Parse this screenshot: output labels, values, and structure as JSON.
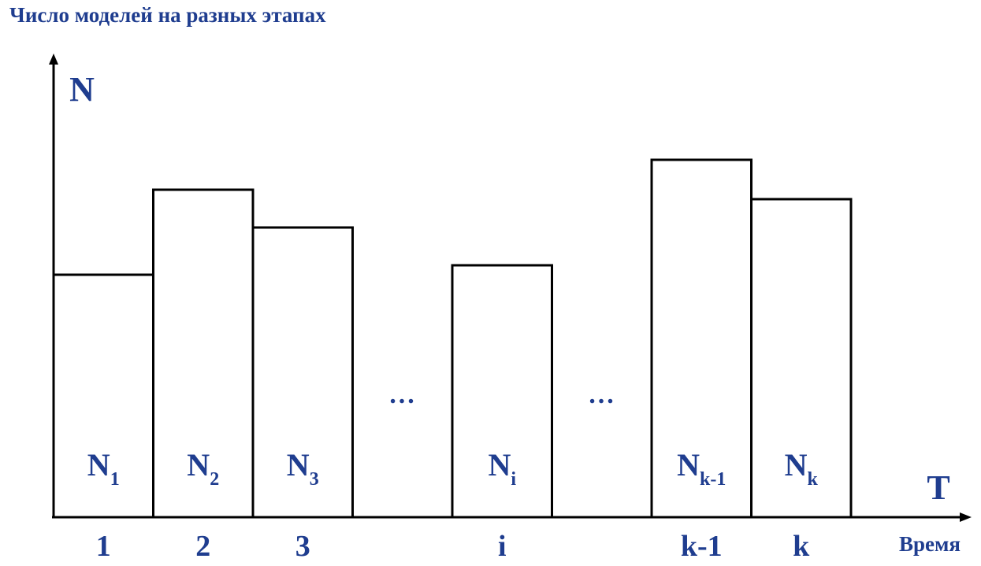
{
  "title": "Число моделей на разных этапах",
  "y_axis_label": "N",
  "x_axis_label": "T",
  "x_axis_caption": "Время",
  "ellipsis": "…",
  "colors": {
    "text": "#1F3D8F",
    "stroke": "#000000",
    "fill": "#ffffff"
  },
  "chart_data": {
    "type": "bar",
    "categories": [
      "1",
      "2",
      "3",
      "i",
      "k-1",
      "k"
    ],
    "bar_labels": [
      {
        "base": "N",
        "sub": "1"
      },
      {
        "base": "N",
        "sub": "2"
      },
      {
        "base": "N",
        "sub": "3"
      },
      {
        "base": "N",
        "sub": "i"
      },
      {
        "base": "N",
        "sub": "k-1"
      },
      {
        "base": "N",
        "sub": "k"
      }
    ],
    "gaps_after": [
      2,
      3
    ],
    "values": [
      308,
      416,
      368,
      320,
      454,
      404
    ],
    "ylim": [
      0,
      590
    ],
    "grid": false,
    "legend": "none"
  }
}
